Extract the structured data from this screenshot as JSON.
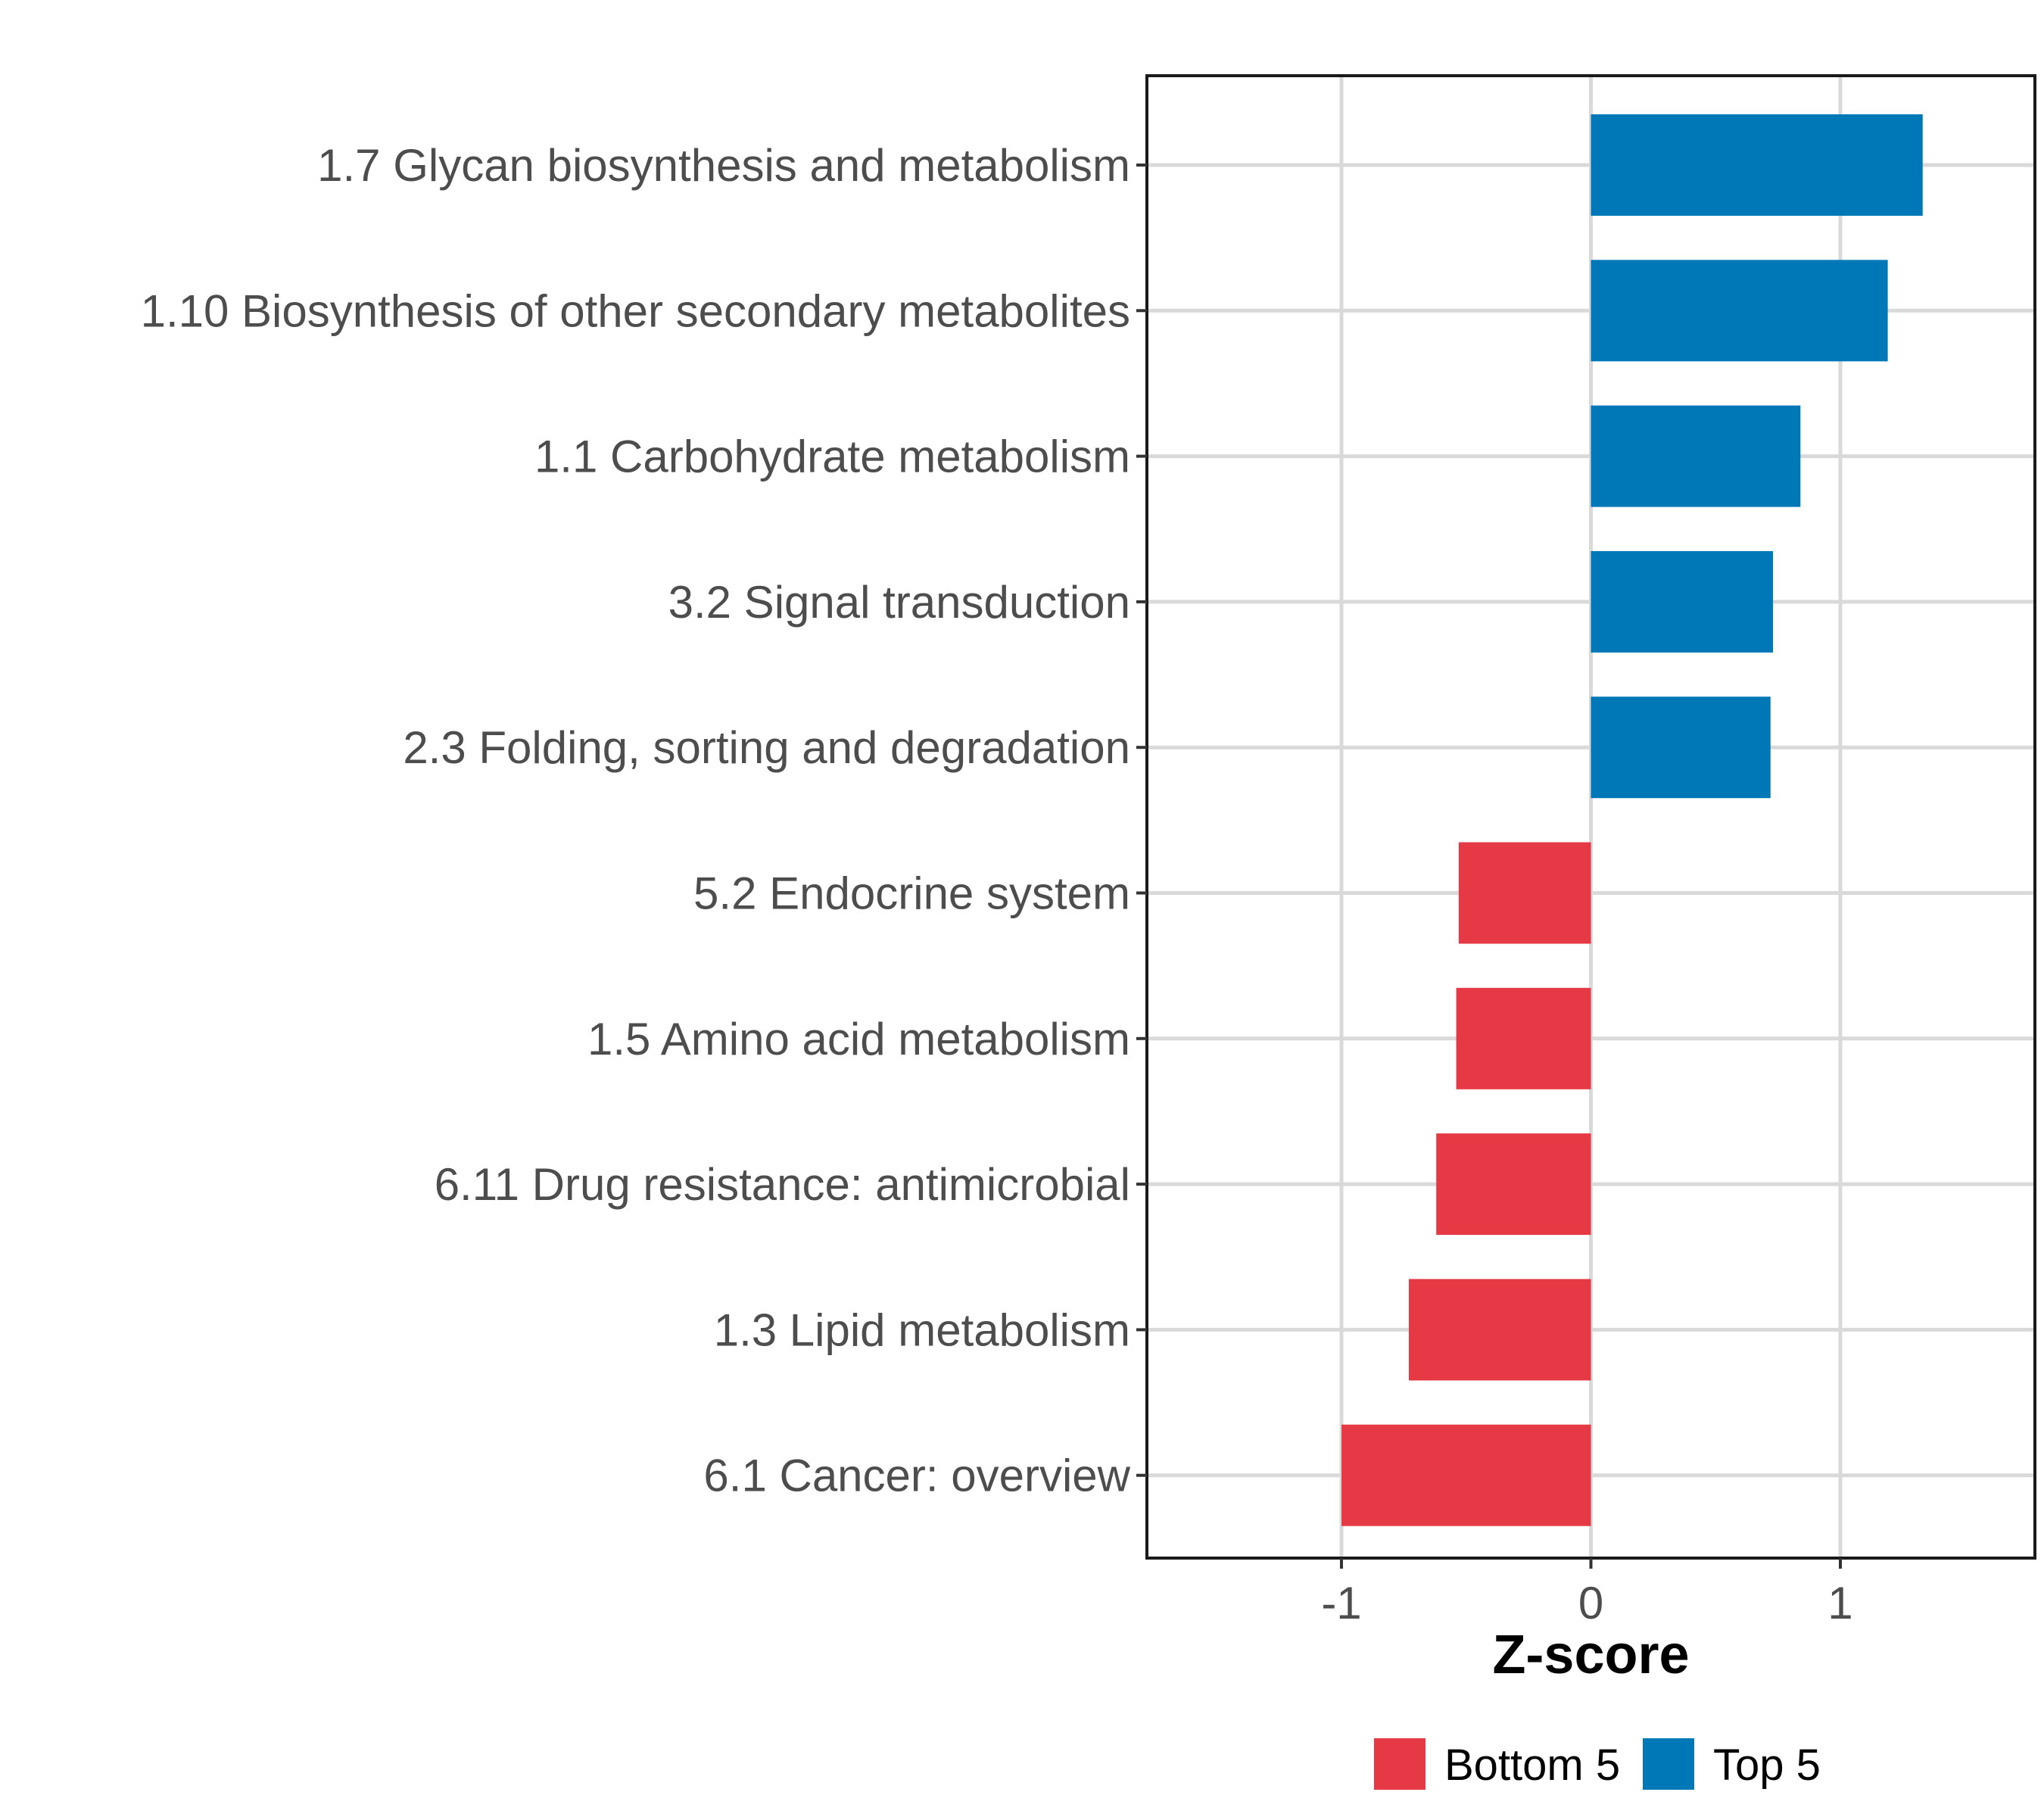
{
  "chart_data": {
    "type": "bar",
    "orientation": "horizontal",
    "title": "",
    "xlabel": "Z-score",
    "ylabel": "",
    "xlim": [
      -1.78,
      1.78
    ],
    "x_ticks": [
      -1,
      0,
      1
    ],
    "x_tick_labels": [
      "-1",
      "0",
      "1"
    ],
    "grid": true,
    "categories": [
      "1.7 Glycan biosynthesis and metabolism",
      "1.10 Biosynthesis of other secondary metabolites",
      "1.1 Carbohydrate metabolism",
      "3.2 Signal transduction",
      "2.3 Folding, sorting and degradation",
      "5.2 Endocrine system",
      "1.5 Amino acid metabolism",
      "6.11 Drug resistance: antimicrobial",
      "1.3 Lipid metabolism",
      "6.1 Cancer: overview"
    ],
    "values": [
      1.33,
      1.19,
      0.84,
      0.73,
      0.72,
      -0.53,
      -0.54,
      -0.62,
      -0.73,
      -1.0
    ],
    "groups": [
      "Top 5",
      "Top 5",
      "Top 5",
      "Top 5",
      "Top 5",
      "Bottom 5",
      "Bottom 5",
      "Bottom 5",
      "Bottom 5",
      "Bottom 5"
    ],
    "legend": {
      "position": "bottom",
      "entries": [
        {
          "label": "Bottom 5",
          "color": "#e63946"
        },
        {
          "label": "Top 5",
          "color": "#0077b6"
        }
      ]
    }
  }
}
